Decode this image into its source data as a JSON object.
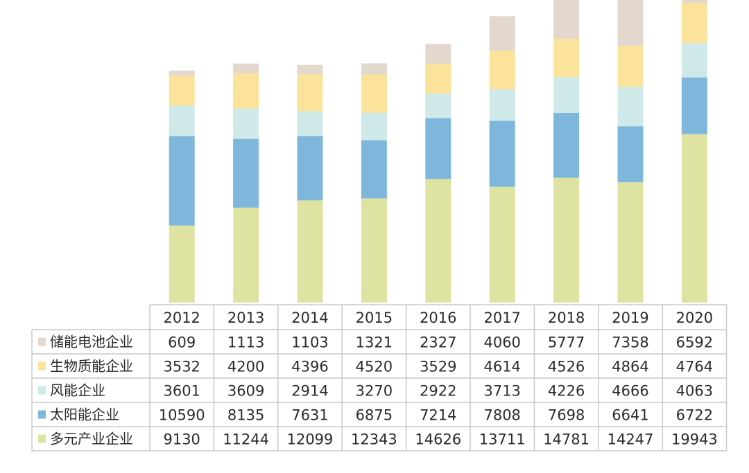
{
  "chart_data": {
    "type": "bar",
    "stacked": true,
    "categories": [
      "2012",
      "2013",
      "2014",
      "2015",
      "2016",
      "2017",
      "2018",
      "2019",
      "2020"
    ],
    "series": [
      {
        "name": "多元产业企业",
        "color": "#dfe3a2",
        "values": [
          9130,
          11244,
          12099,
          12343,
          14626,
          13711,
          14781,
          14247,
          19943
        ]
      },
      {
        "name": "太阳能企业",
        "color": "#7fb7dc",
        "values": [
          10590,
          8135,
          7631,
          6875,
          7214,
          7808,
          7698,
          6641,
          6722
        ]
      },
      {
        "name": "风能企业",
        "color": "#cfe9e9",
        "values": [
          3601,
          3609,
          2914,
          3270,
          2922,
          3713,
          4226,
          4666,
          4063
        ]
      },
      {
        "name": "生物质能企业",
        "color": "#fbe39b",
        "values": [
          3532,
          4200,
          4396,
          4520,
          3529,
          4614,
          4526,
          4864,
          4764
        ]
      },
      {
        "name": "储能电池企业",
        "color": "#e2d8cd",
        "values": [
          609,
          1113,
          1103,
          1321,
          2327,
          4060,
          5777,
          7358,
          6592
        ]
      }
    ],
    "table_row_order": [
      "储能电池企业",
      "生物质能企业",
      "风能企业",
      "太阳能企业",
      "多元产业企业"
    ],
    "legend": "data-table-left",
    "grid": false
  }
}
